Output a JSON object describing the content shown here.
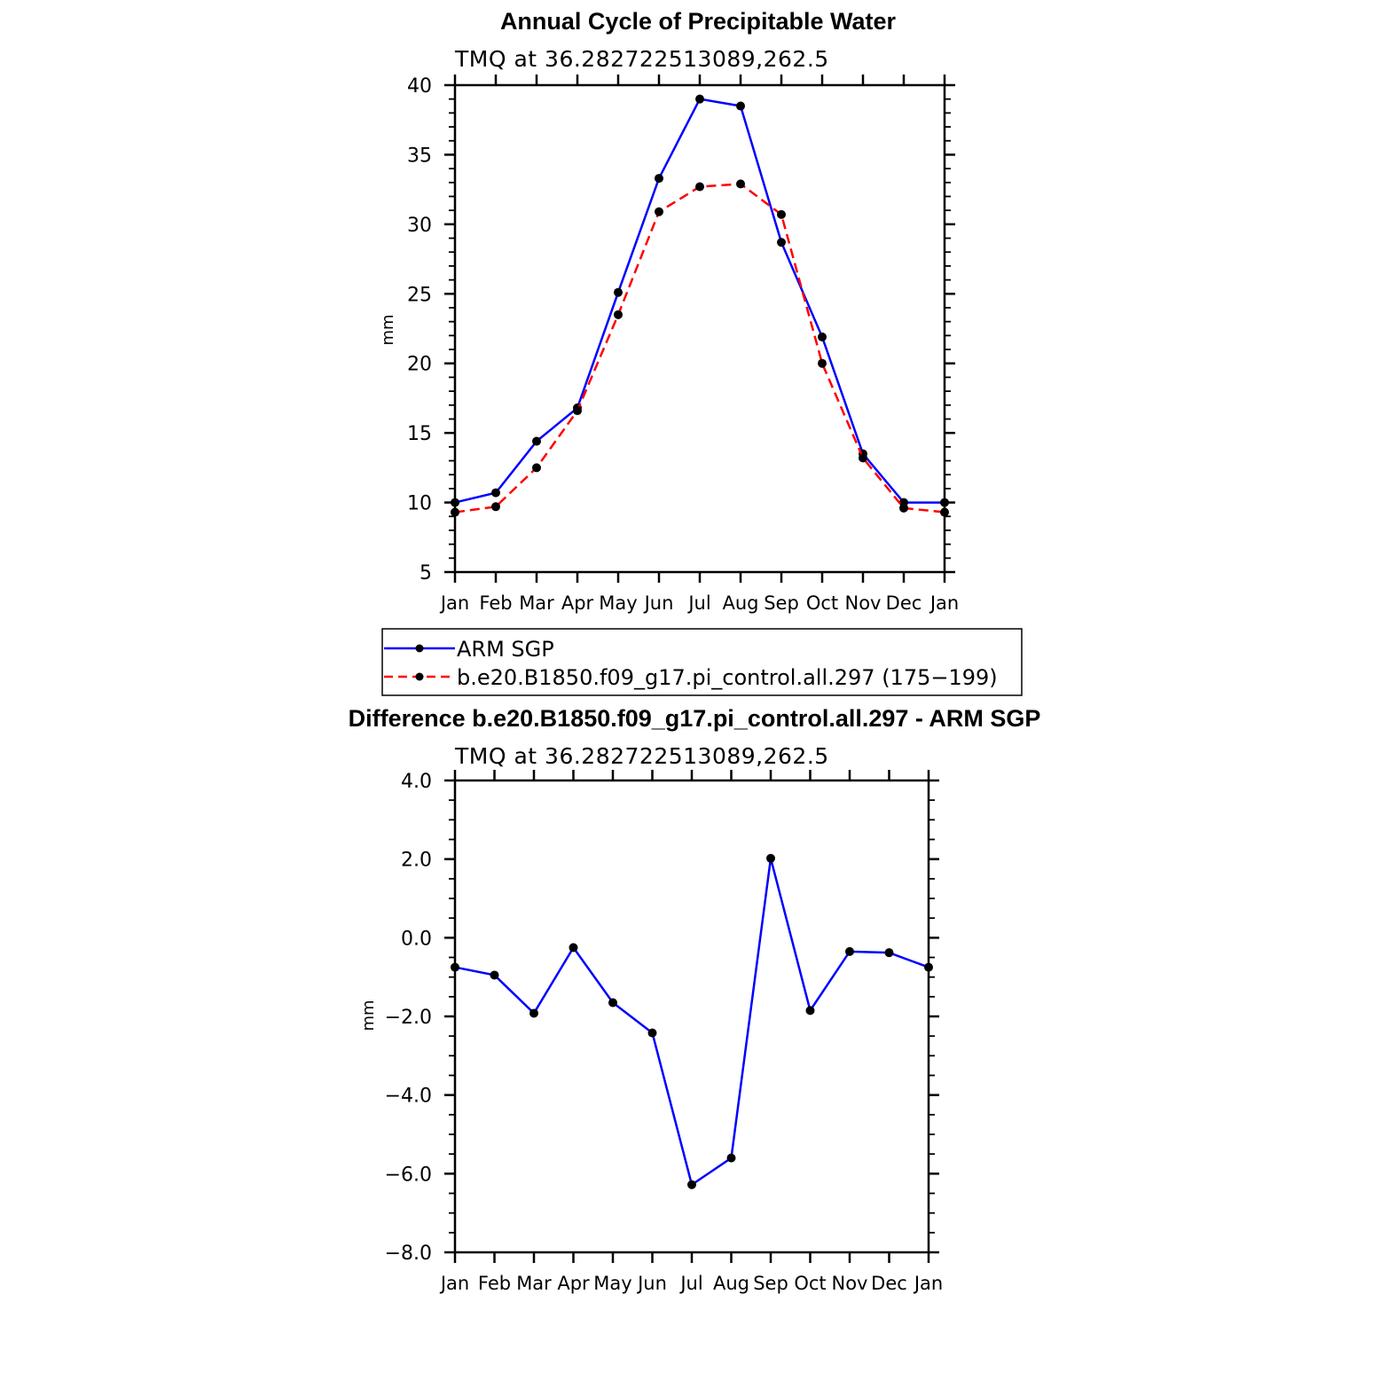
{
  "chart_data": [
    {
      "type": "line",
      "title": "Annual Cycle of Precipitable Water",
      "subtitle": "TMQ at 36.282722513089,262.5",
      "xlabel": "",
      "ylabel": "mm",
      "categories": [
        "Jan",
        "Feb",
        "Mar",
        "Apr",
        "May",
        "Jun",
        "Jul",
        "Aug",
        "Sep",
        "Oct",
        "Nov",
        "Dec",
        "Jan"
      ],
      "ylim": [
        5,
        40
      ],
      "yticks": [
        "5",
        "10",
        "15",
        "20",
        "25",
        "30",
        "35",
        "40"
      ],
      "grid": false,
      "legend_position": "bottom",
      "series": [
        {
          "name": "ARM SGP",
          "color": "#0000ff",
          "dash": "solid",
          "values": [
            10.0,
            10.7,
            14.4,
            16.8,
            25.1,
            33.3,
            39.0,
            38.5,
            28.7,
            21.9,
            13.5,
            10.0,
            10.0
          ]
        },
        {
          "name": "b.e20.B1850.f09_g17.pi_control.all.297 (175−199)",
          "color": "#ff0000",
          "dash": "dashed",
          "values": [
            9.3,
            9.7,
            12.5,
            16.6,
            23.5,
            30.9,
            32.7,
            32.9,
            30.7,
            20.0,
            13.2,
            9.6,
            9.3
          ]
        }
      ]
    },
    {
      "type": "line",
      "title": "Difference b.e20.B1850.f09_g17.pi_control.all.297 - ARM SGP",
      "subtitle": "TMQ at 36.282722513089,262.5",
      "xlabel": "",
      "ylabel": "mm",
      "categories": [
        "Jan",
        "Feb",
        "Mar",
        "Apr",
        "May",
        "Jun",
        "Jul",
        "Aug",
        "Sep",
        "Oct",
        "Nov",
        "Dec",
        "Jan"
      ],
      "ylim": [
        -8,
        4
      ],
      "yticks": [
        "−8.0",
        "−6.0",
        "−4.0",
        "−2.0",
        "0.0",
        "2.0",
        "4.0"
      ],
      "grid": false,
      "series": [
        {
          "color": "#0000ff",
          "dash": "solid",
          "values": [
            -0.75,
            -0.95,
            -1.92,
            -0.25,
            -1.65,
            -2.42,
            -6.28,
            -5.6,
            2.02,
            -1.85,
            -0.35,
            -0.38,
            -0.75
          ]
        }
      ]
    }
  ]
}
